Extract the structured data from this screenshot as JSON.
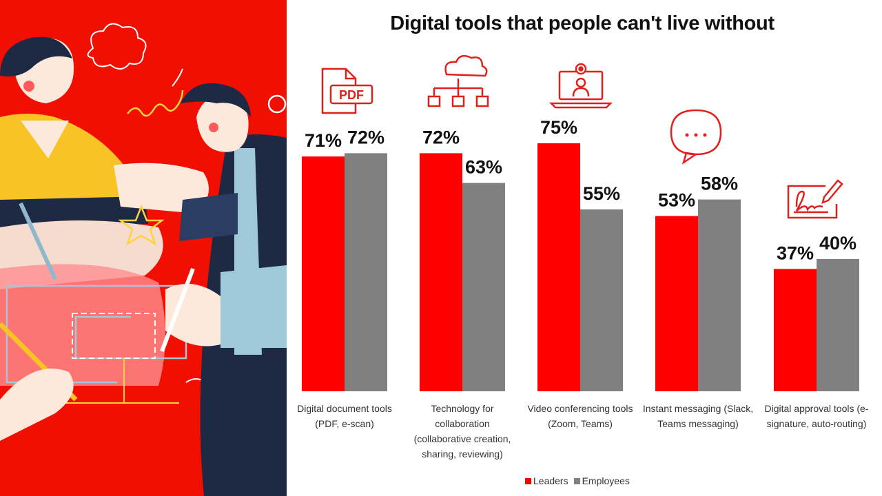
{
  "colors": {
    "leaders": "#ff0000",
    "employees": "#808080",
    "background_panel": "#f00f00",
    "icon": "#e0201b"
  },
  "icons": [
    "pdf-file-icon",
    "cloud-network-icon",
    "video-conference-icon",
    "chat-bubble-icon",
    "e-signature-icon"
  ],
  "chart_data": {
    "type": "bar",
    "title": "Digital tools that people can't live without",
    "categories": [
      [
        "Digital document tools",
        "(PDF, e-scan)"
      ],
      [
        "Technology for",
        "collaboration",
        "(collaborative creation,",
        "sharing, reviewing)"
      ],
      [
        "Video conferencing tools",
        "(Zoom, Teams)"
      ],
      [
        "Instant messaging (Slack,",
        "Teams messaging)"
      ],
      [
        "Digital approval tools (e-",
        "signature, auto-routing)"
      ]
    ],
    "series": [
      {
        "name": "Leaders",
        "values": [
          71,
          72,
          75,
          53,
          37
        ],
        "labels": [
          "71%",
          "72%",
          "75%",
          "53%",
          "37%"
        ]
      },
      {
        "name": "Employees",
        "values": [
          72,
          63,
          55,
          58,
          40
        ],
        "labels": [
          "72%",
          "63%",
          "55%",
          "58%",
          "40%"
        ]
      }
    ],
    "ylim": [
      0,
      75
    ],
    "grid": false,
    "legend": "bottom"
  }
}
